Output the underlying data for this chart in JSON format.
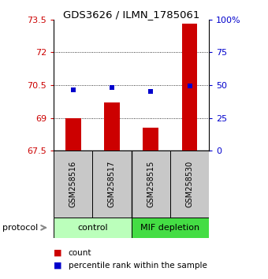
{
  "title": "GDS3626 / ILMN_1785061",
  "samples": [
    "GSM258516",
    "GSM258517",
    "GSM258515",
    "GSM258530"
  ],
  "bar_values": [
    69.0,
    69.7,
    68.55,
    73.3
  ],
  "percentile_values": [
    70.28,
    70.38,
    70.22,
    70.48
  ],
  "ymin": 67.5,
  "ymax": 73.5,
  "yticks": [
    67.5,
    69.0,
    70.5,
    72.0,
    73.5
  ],
  "ytick_labels": [
    "67.5",
    "69",
    "70.5",
    "72",
    "73.5"
  ],
  "right_ytick_labels": [
    "0",
    "25",
    "50",
    "75",
    "100%"
  ],
  "grid_lines": [
    69.0,
    70.5,
    72.0
  ],
  "bar_color": "#cc0000",
  "percentile_color": "#0000cc",
  "groups": [
    {
      "label": "control",
      "samples": [
        0,
        1
      ],
      "color": "#bbffbb"
    },
    {
      "label": "MIF depletion",
      "samples": [
        2,
        3
      ],
      "color": "#44dd44"
    }
  ],
  "sample_box_color": "#c8c8c8",
  "bar_width": 0.4,
  "bar_bottom": 67.5,
  "percentile_marker_size": 5,
  "legend_count_label": "count",
  "legend_percentile_label": "percentile rank within the sample",
  "protocol_label": "protocol"
}
